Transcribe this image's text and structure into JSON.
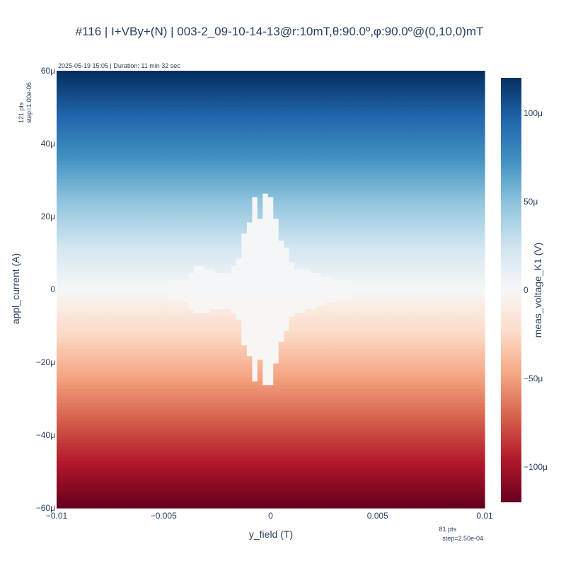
{
  "chart_data": {
    "type": "heatmap",
    "title": "#116 | I+VBy+(N) | 003-2_09-10-14-13@r:10mT,θ:90.0º,φ:90.0º@(0,10,0)mT",
    "subtitle": "2025-05-19 15:05 | Duration: 11 min 32 sec",
    "xlabel": "y_field (T)",
    "ylabel": "appl_current (A)",
    "colorbar_label": "meas_voltage_K1 (V)",
    "colorscale": "RdBu",
    "xlim": [
      -0.01,
      0.01
    ],
    "ylim": [
      -6e-05,
      6e-05
    ],
    "zlim": [
      -0.00012,
      0.00012
    ],
    "x_ticks": [
      -0.01,
      -0.005,
      0,
      0.005,
      0.01
    ],
    "x_tick_labels": [
      "−0.01",
      "−0.005",
      "0",
      "0.005",
      "0.01"
    ],
    "y_ticks": [
      6e-05,
      4e-05,
      2e-05,
      0,
      -2e-05,
      -4e-05,
      -6e-05
    ],
    "y_tick_labels": [
      "60μ",
      "40μ",
      "20μ",
      "0",
      "−20μ",
      "−40μ",
      "−60μ"
    ],
    "colorbar_ticks": [
      0.0001,
      5e-05,
      0,
      -5e-05,
      -0.0001
    ],
    "colorbar_tick_labels": [
      "100μ",
      "50μ",
      "0",
      "−50μ",
      "−100μ"
    ],
    "x_points_note": [
      "81 pts",
      "step=2.50e-04"
    ],
    "y_points_note": [
      "121 pts",
      "step=1.00e-06"
    ],
    "x_count": 81,
    "x_step": 0.00025,
    "y_count": 121,
    "y_step": 1e-06,
    "z_model": "meas_voltage ≈ 2 × appl_current (linear response); zero-voltage (superconducting) region extends to about ±2.7e-05 A near zero field",
    "critical_current_profile": {
      "x": [
        -0.01,
        -0.0075,
        -0.005,
        -0.004,
        -0.0035,
        -0.003,
        -0.0025,
        -0.002,
        -0.0015,
        -0.00125,
        -0.001,
        -0.00075,
        -0.0005,
        -0.00025,
        0,
        0.00025,
        0.0005,
        0.00075,
        0.001,
        0.00125,
        0.0015,
        0.002,
        0.0025,
        0.003,
        0.004,
        0.005,
        0.0075,
        0.01
      ],
      "ic": [
        1e-06,
        1e-06,
        2e-06,
        3e-06,
        7e-06,
        6e-06,
        5e-06,
        5e-06,
        8e-06,
        1.5e-05,
        1.8e-05,
        2.6e-05,
        1.9e-05,
        2.7e-05,
        2.6e-05,
        2e-05,
        1.4e-05,
        1.2e-05,
        7e-06,
        6e-06,
        6e-06,
        5e-06,
        4e-06,
        3e-06,
        2e-06,
        2e-06,
        1e-06,
        1e-06
      ]
    }
  }
}
